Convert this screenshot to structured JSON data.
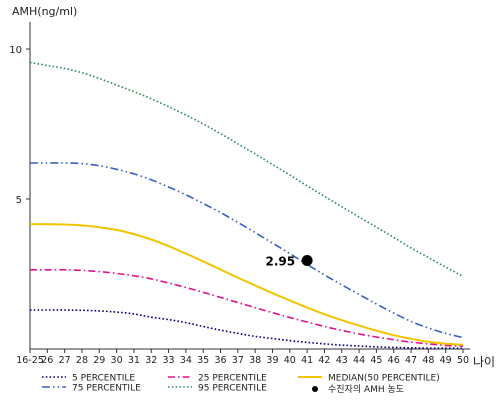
{
  "chart_data": {
    "type": "line",
    "ylabel": "AMH(ng/ml)",
    "xlabel": "나이",
    "x_categories": [
      "16-25",
      "26",
      "27",
      "28",
      "29",
      "30",
      "31",
      "32",
      "33",
      "34",
      "35",
      "36",
      "37",
      "38",
      "39",
      "40",
      "41",
      "42",
      "43",
      "44",
      "45",
      "46",
      "47",
      "48",
      "49",
      "50"
    ],
    "y_ticks": [
      5,
      10
    ],
    "ylim": [
      0,
      10.9
    ],
    "grid": false,
    "legend_position": "bottom",
    "series": [
      {
        "name": "5 PERCENTILE",
        "color": "#000080",
        "dash": "dot",
        "values": [
          1.3,
          1.3,
          1.3,
          1.29,
          1.27,
          1.23,
          1.17,
          1.06,
          0.98,
          0.88,
          0.75,
          0.63,
          0.52,
          0.42,
          0.35,
          0.28,
          0.22,
          0.17,
          0.13,
          0.1,
          0.07,
          0.05,
          0.04,
          0.03,
          0.03,
          0.02
        ]
      },
      {
        "name": "25 PERCENTILE",
        "color": "#e0138c",
        "dash": "dashdot",
        "values": [
          2.64,
          2.64,
          2.64,
          2.62,
          2.58,
          2.52,
          2.44,
          2.34,
          2.2,
          2.05,
          1.89,
          1.72,
          1.55,
          1.38,
          1.21,
          1.05,
          0.9,
          0.75,
          0.62,
          0.5,
          0.4,
          0.31,
          0.23,
          0.17,
          0.12,
          0.09
        ]
      },
      {
        "name": "MEDIAN(50 PERCENTILE)",
        "color": "#f2c400",
        "dash": "solid",
        "values": [
          4.16,
          4.16,
          4.15,
          4.12,
          4.06,
          3.97,
          3.83,
          3.65,
          3.43,
          3.18,
          2.92,
          2.65,
          2.38,
          2.12,
          1.86,
          1.62,
          1.38,
          1.16,
          0.96,
          0.78,
          0.61,
          0.46,
          0.34,
          0.24,
          0.18,
          0.14
        ]
      },
      {
        "name": "75 PERCENTILE",
        "color": "#3a5fc8",
        "dash": "dashdotdot",
        "values": [
          6.2,
          6.2,
          6.2,
          6.18,
          6.11,
          5.99,
          5.84,
          5.64,
          5.4,
          5.14,
          4.85,
          4.55,
          4.22,
          3.88,
          3.53,
          3.18,
          2.82,
          2.47,
          2.14,
          1.82,
          1.5,
          1.2,
          0.92,
          0.7,
          0.52,
          0.38
        ]
      },
      {
        "name": "95 PERCENTILE",
        "color": "#2e8b57",
        "dash": "dot",
        "values": [
          9.55,
          9.45,
          9.35,
          9.21,
          9.02,
          8.8,
          8.58,
          8.34,
          8.08,
          7.8,
          7.5,
          7.18,
          6.84,
          6.5,
          6.15,
          5.8,
          5.44,
          5.09,
          4.74,
          4.4,
          4.06,
          3.72,
          3.37,
          3.05,
          2.73,
          2.42
        ]
      }
    ],
    "patient": {
      "legend_label": "수진자의 AMH 농도",
      "value_label": "2.95",
      "x": "41",
      "y": 2.95
    }
  }
}
